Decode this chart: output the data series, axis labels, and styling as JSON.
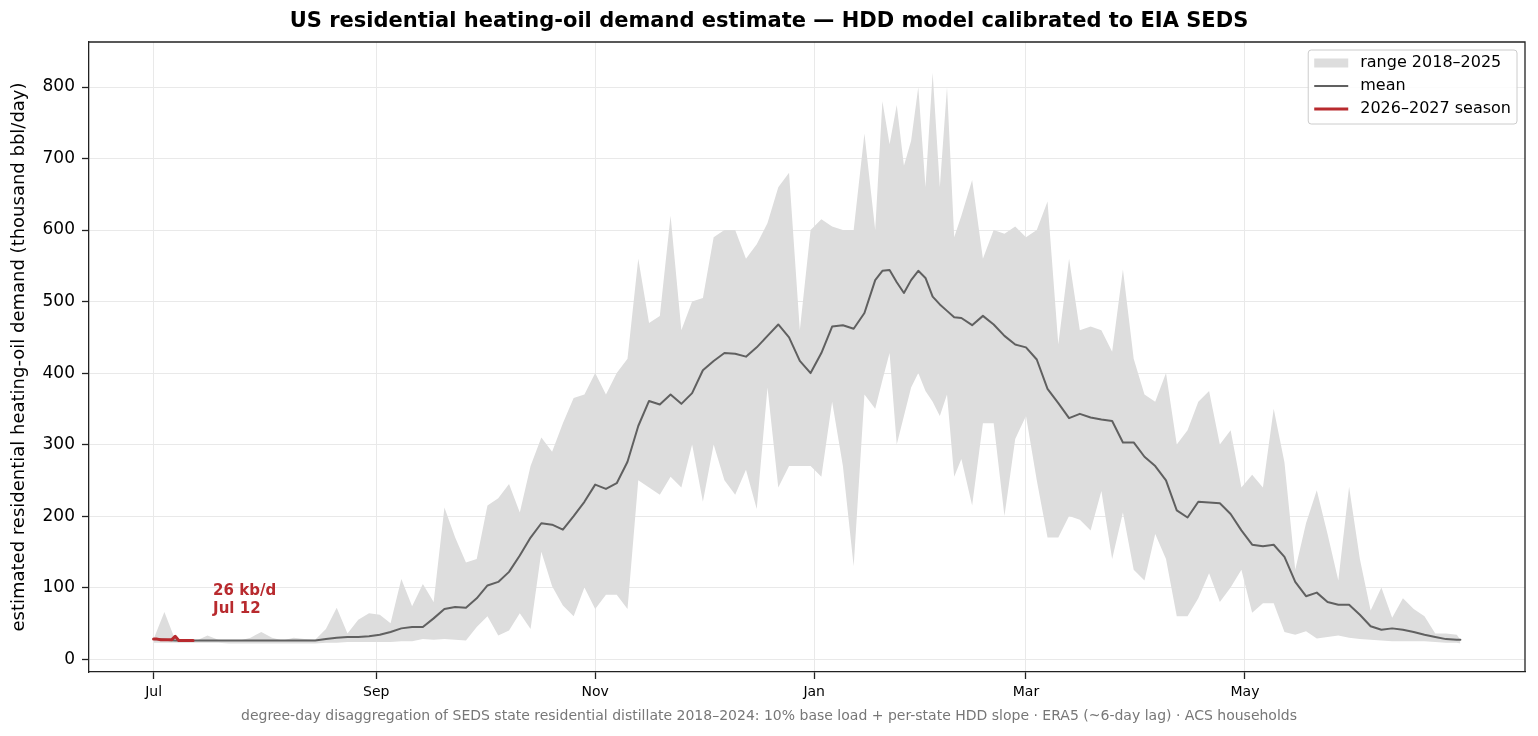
{
  "chart_data": {
    "type": "line",
    "title": "US residential heating-oil demand estimate — HDD model calibrated to EIA SEDS",
    "ylabel": "estimated residential heating-oil demand (thousand bbl/day)",
    "annotations": [
      {
        "text": "26 kb/d\nJul 12",
        "x": "2026-07-12",
        "y": 26
      },
      "degree-day disaggregation of SEDS state residential distillate 2018–2024: 10% base load + per-state HDD slope · ERA5 (~6-day lag) · ACS households"
    ],
    "xlim": [
      "2026-06-13",
      "2027-07-18"
    ],
    "xticks": [
      {
        "value": "2026-07-01",
        "label": "Jul"
      },
      {
        "value": "2026-09-01",
        "label": "Sep"
      },
      {
        "value": "2026-11-01",
        "label": "Nov"
      },
      {
        "value": "2027-01-01",
        "label": "Jan"
      },
      {
        "value": "2027-03-01",
        "label": "Mar"
      },
      {
        "value": "2027-05-01",
        "label": "May"
      }
    ],
    "ylim": [
      -18,
      863
    ],
    "yticks": [
      0,
      100,
      200,
      300,
      400,
      500,
      600,
      700,
      800
    ],
    "grid": true,
    "legend": "top right",
    "marker": "none",
    "x": [
      "2026-07-01",
      "2026-07-04",
      "2026-07-07",
      "2026-07-10",
      "2026-07-13",
      "2026-07-16",
      "2026-07-19",
      "2026-07-22",
      "2026-07-25",
      "2026-07-28",
      "2026-07-31",
      "2026-08-03",
      "2026-08-06",
      "2026-08-09",
      "2026-08-12",
      "2026-08-15",
      "2026-08-18",
      "2026-08-21",
      "2026-08-24",
      "2026-08-27",
      "2026-08-30",
      "2026-09-02",
      "2026-09-05",
      "2026-09-08",
      "2026-09-11",
      "2026-09-14",
      "2026-09-17",
      "2026-09-20",
      "2026-09-23",
      "2026-09-26",
      "2026-09-29",
      "2026-10-02",
      "2026-10-05",
      "2026-10-08",
      "2026-10-11",
      "2026-10-14",
      "2026-10-17",
      "2026-10-20",
      "2026-10-23",
      "2026-10-26",
      "2026-10-29",
      "2026-11-01",
      "2026-11-04",
      "2026-11-07",
      "2026-11-10",
      "2026-11-13",
      "2026-11-16",
      "2026-11-19",
      "2026-11-22",
      "2026-11-25",
      "2026-11-28",
      "2026-12-01",
      "2026-12-04",
      "2026-12-07",
      "2026-12-10",
      "2026-12-13",
      "2026-12-16",
      "2026-12-19",
      "2026-12-22",
      "2026-12-25",
      "2026-12-28",
      "2026-12-31",
      "2027-01-03",
      "2027-01-06",
      "2027-01-09",
      "2027-01-12",
      "2027-01-15",
      "2027-01-18",
      "2027-01-20",
      "2027-01-22",
      "2027-01-24",
      "2027-01-26",
      "2027-01-28",
      "2027-01-30",
      "2027-02-01",
      "2027-02-03",
      "2027-02-05",
      "2027-02-07",
      "2027-02-09",
      "2027-02-11",
      "2027-02-14",
      "2027-02-17",
      "2027-02-20",
      "2027-02-23",
      "2027-02-26",
      "2027-03-01",
      "2027-03-04",
      "2027-03-07",
      "2027-03-10",
      "2027-03-13",
      "2027-03-16",
      "2027-03-19",
      "2027-03-22",
      "2027-03-25",
      "2027-03-28",
      "2027-03-31",
      "2027-04-03",
      "2027-04-06",
      "2027-04-09",
      "2027-04-12",
      "2027-04-15",
      "2027-04-18",
      "2027-04-21",
      "2027-04-24",
      "2027-04-27",
      "2027-04-30",
      "2027-05-03",
      "2027-05-06",
      "2027-05-09",
      "2027-05-12",
      "2027-05-15",
      "2027-05-18",
      "2027-05-21",
      "2027-05-24",
      "2027-05-27",
      "2027-05-30",
      "2027-06-02",
      "2027-06-05",
      "2027-06-08",
      "2027-06-11",
      "2027-06-14",
      "2027-06-17",
      "2027-06-20",
      "2027-06-23",
      "2027-06-26",
      "2027-06-29",
      "2027-06-30"
    ],
    "series": [
      {
        "name": "range 2018–2025",
        "type": "area",
        "color": "#dddddd",
        "values": [
          null,
          null,
          null,
          null,
          null,
          null,
          null,
          null,
          null,
          null,
          null,
          null,
          null,
          null,
          null,
          null,
          null,
          null,
          null,
          null,
          null,
          null,
          null,
          null,
          null,
          null,
          null,
          null,
          null,
          null,
          null,
          null,
          null,
          null,
          null,
          null,
          null,
          null,
          null,
          null,
          null,
          null,
          null,
          null,
          null,
          null,
          null,
          null,
          null,
          null,
          null,
          null,
          null,
          null,
          null,
          null,
          null,
          null,
          null,
          null,
          null,
          null,
          null,
          null,
          null,
          null,
          null,
          null,
          null,
          null,
          null,
          null,
          null,
          null,
          null,
          null,
          null,
          null,
          null,
          null,
          null,
          null,
          null,
          null,
          null,
          null,
          null,
          null,
          null,
          null,
          null,
          null,
          null,
          null,
          null,
          null,
          null,
          null,
          null,
          null,
          null,
          null,
          null,
          null,
          null,
          null,
          null,
          null,
          null,
          null,
          null,
          null,
          null,
          null,
          null,
          null,
          null,
          null,
          null,
          null,
          null,
          null,
          null,
          null,
          null,
          null,
          null
        ],
        "upper": [
          28,
          66,
          27,
          27,
          26,
          33,
          27,
          26,
          26,
          30,
          38,
          30,
          26,
          30,
          28,
          27,
          42,
          72,
          36,
          55,
          64,
          62,
          50,
          112,
          74,
          105,
          80,
          212,
          170,
          135,
          140,
          215,
          225,
          245,
          205,
          270,
          310,
          290,
          330,
          365,
          370,
          400,
          370,
          400,
          420,
          560,
          470,
          480,
          620,
          460,
          500,
          505,
          590,
          600,
          600,
          560,
          580,
          610,
          660,
          680,
          460,
          600,
          615,
          605,
          600,
          600,
          735,
          600,
          780,
          720,
          775,
          690,
          725,
          800,
          660,
          820,
          660,
          800,
          590,
          620,
          670,
          560,
          600,
          595,
          605,
          590,
          600,
          640,
          440,
          560,
          460,
          465,
          460,
          430,
          545,
          420,
          370,
          360,
          400,
          300,
          320,
          360,
          375,
          300,
          320,
          240,
          258,
          240,
          350,
          275,
          125,
          190,
          236,
          175,
          110,
          241,
          140,
          68,
          100,
          58,
          85,
          70,
          60,
          36,
          36,
          34,
          27
        ],
        "lower": [
          23,
          23,
          23,
          23,
          23,
          23,
          23,
          22,
          22,
          22,
          22,
          22,
          22,
          22,
          22,
          22,
          23,
          23,
          24,
          24,
          24,
          24,
          24,
          25,
          25,
          28,
          27,
          28,
          27,
          26,
          45,
          60,
          33,
          40,
          64,
          42,
          150,
          102,
          75,
          60,
          100,
          70,
          90,
          90,
          70,
          250,
          240,
          230,
          255,
          240,
          300,
          220,
          300,
          250,
          230,
          265,
          210,
          380,
          240,
          270,
          270,
          270,
          255,
          360,
          270,
          130,
          370,
          350,
          390,
          428,
          300,
          340,
          380,
          400,
          375,
          360,
          340,
          370,
          255,
          280,
          215,
          330,
          330,
          200,
          308,
          340,
          250,
          170,
          170,
          200,
          195,
          180,
          235,
          140,
          205,
          125,
          110,
          175,
          140,
          60,
          60,
          85,
          120,
          80,
          100,
          125,
          65,
          78,
          78,
          38,
          34,
          39,
          29,
          31,
          33,
          30,
          28,
          27,
          26,
          25,
          25,
          25,
          25,
          24,
          23,
          23,
          22
        ]
      },
      {
        "name": "mean",
        "color": "#606060",
        "values": [
          28,
          27,
          26,
          26,
          26,
          26,
          26,
          26,
          26,
          26,
          26,
          26,
          26,
          26,
          26,
          26,
          28,
          30,
          31,
          31,
          32,
          34,
          38,
          43,
          45,
          45,
          57,
          70,
          73,
          72,
          85,
          103,
          108,
          122,
          145,
          170,
          190,
          188,
          181,
          200,
          220,
          244,
          238,
          246,
          276,
          326,
          361,
          356,
          370,
          357,
          372,
          404,
          417,
          428,
          427,
          423,
          436,
          452,
          468,
          450,
          417,
          400,
          428,
          465,
          467,
          462,
          484,
          530,
          543,
          544,
          527,
          512,
          530,
          543,
          533,
          507,
          496,
          487,
          478,
          477,
          467,
          480,
          468,
          452,
          440,
          436,
          419,
          378,
          358,
          337,
          343,
          338,
          335,
          333,
          303,
          303,
          283,
          270,
          250,
          208,
          198,
          220,
          219,
          218,
          203,
          180,
          160,
          158,
          160,
          143,
          108,
          88,
          93,
          80,
          76,
          76,
          62,
          46,
          41,
          43,
          41,
          38,
          34,
          31,
          28,
          27,
          27
        ]
      },
      {
        "name": "2026–2027 season",
        "color": "#b82a2e",
        "x": [
          "2026-07-01",
          "2026-07-02",
          "2026-07-03",
          "2026-07-04",
          "2026-07-05",
          "2026-07-06",
          "2026-07-07",
          "2026-07-08",
          "2026-07-09",
          "2026-07-10",
          "2026-07-11",
          "2026-07-12"
        ],
        "values": [
          28,
          28,
          27,
          27,
          27,
          27,
          32,
          26,
          26,
          26,
          26,
          26
        ]
      }
    ]
  }
}
